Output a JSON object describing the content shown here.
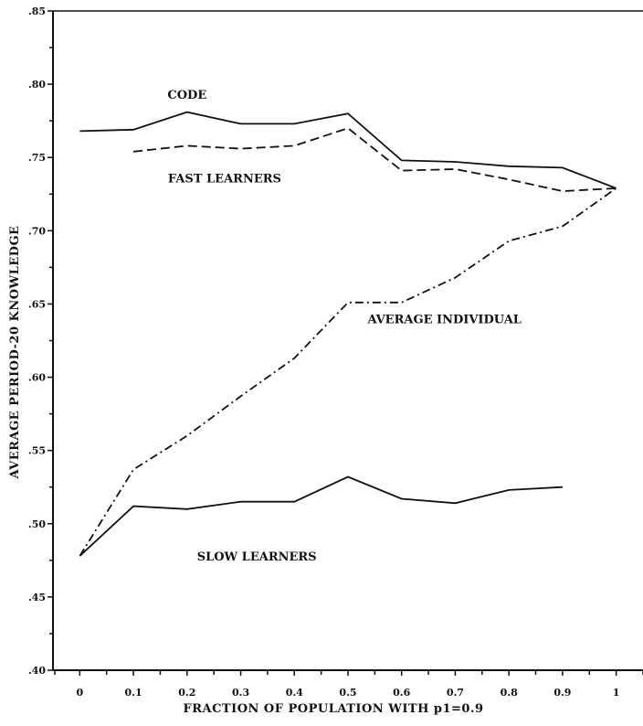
{
  "chart_data": {
    "type": "line",
    "xlabel": "FRACTION OF POPULATION WITH p1=0.9",
    "ylabel": "AVERAGE PERIOD-20 KNOWLEDGE",
    "xlim": [
      -0.05,
      1.05
    ],
    "ylim": [
      0.4,
      0.85
    ],
    "x_ticks": [
      "0",
      "0.1",
      "0.2",
      "0.3",
      "0.4",
      "0.5",
      "0.6",
      "0.7",
      "0.8",
      "0.9",
      "1"
    ],
    "y_ticks": [
      ".40",
      ".45",
      ".50",
      ".55",
      ".60",
      ".65",
      ".70",
      ".75",
      ".80",
      ".85"
    ],
    "grid": false,
    "series": [
      {
        "name": "CODE",
        "style": "solid",
        "x": [
          0,
          0.1,
          0.2,
          0.3,
          0.4,
          0.5,
          0.6,
          0.7,
          0.8,
          0.9,
          1.0
        ],
        "values": [
          0.768,
          0.769,
          0.781,
          0.773,
          0.773,
          0.78,
          0.748,
          0.747,
          0.744,
          0.743,
          0.729
        ]
      },
      {
        "name": "FAST LEARNERS",
        "style": "dashed",
        "x": [
          0.1,
          0.2,
          0.3,
          0.4,
          0.5,
          0.6,
          0.7,
          0.8,
          0.9,
          1.0
        ],
        "values": [
          0.754,
          0.758,
          0.756,
          0.758,
          0.77,
          0.741,
          0.742,
          0.735,
          0.727,
          0.729
        ]
      },
      {
        "name": "AVERAGE INDIVIDUAL",
        "style": "dashdot",
        "x": [
          0,
          0.1,
          0.2,
          0.3,
          0.4,
          0.5,
          0.6,
          0.7,
          0.8,
          0.9,
          1.0
        ],
        "values": [
          0.478,
          0.537,
          0.56,
          0.587,
          0.613,
          0.651,
          0.651,
          0.668,
          0.693,
          0.703,
          0.729
        ]
      },
      {
        "name": "SLOW LEARNERS",
        "style": "solid",
        "x": [
          0,
          0.1,
          0.2,
          0.3,
          0.4,
          0.5,
          0.6,
          0.7,
          0.8,
          0.9
        ],
        "values": [
          0.478,
          0.512,
          0.51,
          0.515,
          0.515,
          0.532,
          0.517,
          0.514,
          0.523,
          0.525
        ]
      }
    ],
    "annotations": [
      {
        "text": "CODE",
        "x": 0.2,
        "y": 0.79
      },
      {
        "text": "FAST LEARNERS",
        "x": 0.27,
        "y": 0.733
      },
      {
        "text": "AVERAGE INDIVIDUAL",
        "x": 0.68,
        "y": 0.637
      },
      {
        "text": "SLOW LEARNERS",
        "x": 0.33,
        "y": 0.475
      }
    ],
    "colors": {
      "line": "#111111",
      "background": "#ffffff"
    }
  }
}
